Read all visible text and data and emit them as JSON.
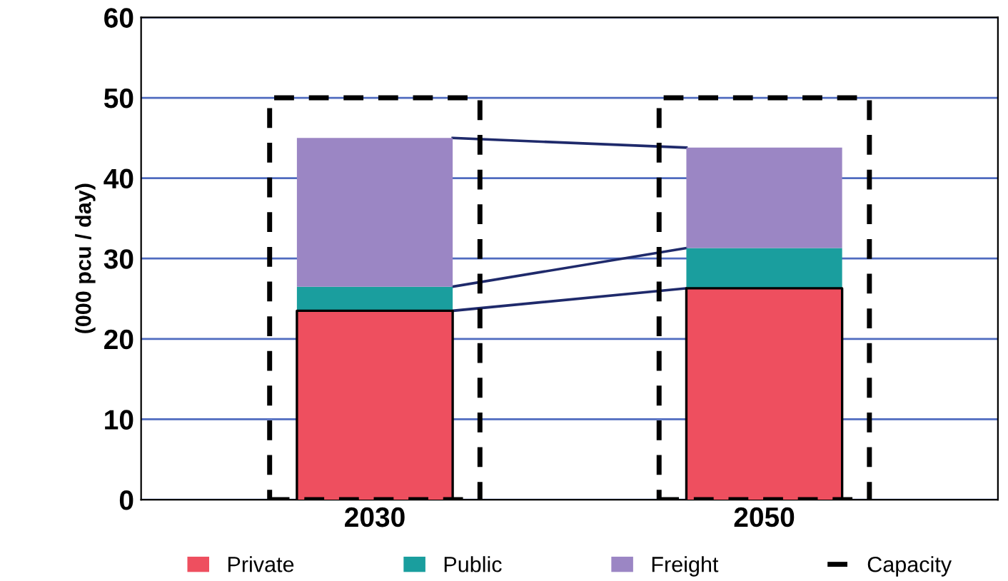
{
  "chart_data": {
    "type": "bar",
    "ylabel": "(000 pcu / day)",
    "categories": [
      "2030",
      "2050"
    ],
    "series": [
      {
        "name": "Private",
        "color": "#ee4f5f",
        "values": [
          23.5,
          26.3
        ],
        "base": [
          0,
          0
        ]
      },
      {
        "name": "Public",
        "color": "#1a9e9e",
        "values": [
          3,
          5
        ],
        "base": [
          23.5,
          26.3
        ]
      },
      {
        "name": "Freight",
        "color": "#9b86c4",
        "values": [
          18.5,
          12.5
        ],
        "base": [
          26.5,
          31.3
        ]
      },
      {
        "name": "Capacity",
        "color": "#000000",
        "values": [
          50,
          50
        ],
        "base": [
          0,
          0
        ],
        "line_style": "dashed"
      }
    ],
    "ylim": [
      0,
      60
    ],
    "yticks": [
      0,
      10,
      20,
      30,
      40,
      50,
      60
    ],
    "grid": "y",
    "legend": "bottom"
  }
}
